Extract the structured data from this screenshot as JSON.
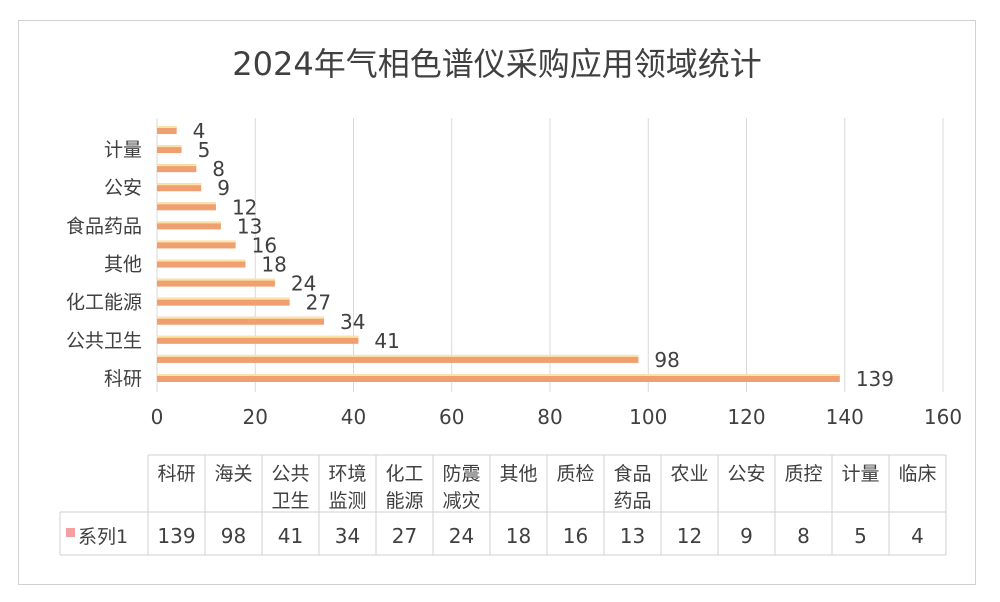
{
  "chart_data": {
    "type": "bar",
    "orientation": "horizontal",
    "title": "2024年气相色谱仪采购应用领域统计",
    "categories": [
      "科研",
      "海关",
      "公共卫生",
      "环境监测",
      "化工能源",
      "防震减灾",
      "其他",
      "质检",
      "食品药品",
      "农业",
      "公安",
      "质控",
      "计量",
      "临床"
    ],
    "table_header_lines": [
      [
        "科研"
      ],
      [
        "海关"
      ],
      [
        "公共",
        "卫生"
      ],
      [
        "环境",
        "监测"
      ],
      [
        "化工",
        "能源"
      ],
      [
        "防震",
        "减灾"
      ],
      [
        "其他"
      ],
      [
        "质检"
      ],
      [
        "食品",
        "药品"
      ],
      [
        "农业"
      ],
      [
        "公安"
      ],
      [
        "质控"
      ],
      [
        "计量"
      ],
      [
        "临床"
      ]
    ],
    "series": [
      {
        "name": "系列1",
        "values": [
          139,
          98,
          41,
          34,
          27,
          24,
          18,
          16,
          13,
          12,
          9,
          8,
          5,
          4
        ]
      }
    ],
    "xlim": [
      0,
      160
    ],
    "xticks": [
      0,
      20,
      40,
      60,
      80,
      100,
      120,
      140,
      160
    ],
    "yaxis_labels_shown": [
      "科研",
      "公共卫生",
      "化工能源",
      "其他",
      "食品药品",
      "公安",
      "计量"
    ],
    "grid": "vertical",
    "data_labels": true,
    "data_table": true,
    "colors": {
      "bar": "#f0a070",
      "bar_highlight": "#fbe3a8",
      "legend_key": "#f4a0a0",
      "grid": "#d9d9d9",
      "text": "#404040"
    }
  }
}
